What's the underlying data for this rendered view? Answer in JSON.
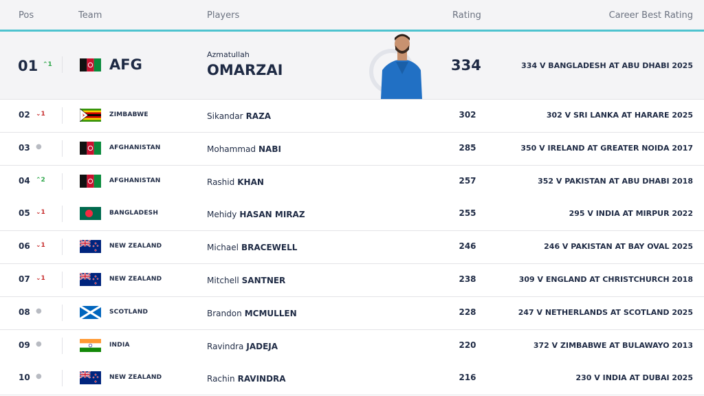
{
  "header": {
    "pos": "Pos",
    "team": "Team",
    "players": "Players",
    "rating": "Rating",
    "career": "Career Best Rating"
  },
  "top": {
    "pos": "01",
    "change": "1",
    "direction": "up",
    "team": "AFG",
    "flag": "afghanistan-flag",
    "first": "Azmatullah",
    "last": "OMARZAI",
    "rating": "334",
    "career": "334 V BANGLADESH AT ABU DHABI 2025"
  },
  "rows": [
    {
      "pos": "02",
      "change": "1",
      "direction": "down",
      "team": "ZIMBABWE",
      "flag": "zimbabwe-flag",
      "first": "Sikandar",
      "last": "RAZA",
      "rating": "302",
      "career": "302 V SRI LANKA AT HARARE 2025"
    },
    {
      "pos": "03",
      "change": "",
      "direction": "same",
      "team": "AFGHANISTAN",
      "flag": "afghanistan-flag",
      "first": "Mohammad",
      "last": "NABI",
      "rating": "285",
      "career": "350 V IRELAND AT GREATER NOIDA 2017"
    },
    {
      "pos": "04",
      "change": "2",
      "direction": "up",
      "team": "AFGHANISTAN",
      "flag": "afghanistan-flag",
      "first": "Rashid",
      "last": "KHAN",
      "rating": "257",
      "career": "352 V PAKISTAN AT ABU DHABI 2018"
    },
    {
      "pos": "05",
      "change": "1",
      "direction": "down",
      "team": "BANGLADESH",
      "flag": "bangladesh-flag",
      "first": "Mehidy",
      "last": "HASAN MIRAZ",
      "rating": "255",
      "career": "295 V INDIA AT MIRPUR 2022"
    },
    {
      "pos": "06",
      "change": "1",
      "direction": "down",
      "team": "NEW ZEALAND",
      "flag": "new-zealand-flag",
      "first": "Michael",
      "last": "BRACEWELL",
      "rating": "246",
      "career": "246 V PAKISTAN AT BAY OVAL 2025"
    },
    {
      "pos": "07",
      "change": "1",
      "direction": "down",
      "team": "NEW ZEALAND",
      "flag": "new-zealand-flag",
      "first": "Mitchell",
      "last": "SANTNER",
      "rating": "238",
      "career": "309 V ENGLAND AT CHRISTCHURCH 2018"
    },
    {
      "pos": "08",
      "change": "",
      "direction": "same",
      "team": "SCOTLAND",
      "flag": "scotland-flag",
      "first": "Brandon",
      "last": "MCMULLEN",
      "rating": "228",
      "career": "247 V NETHERLANDS AT SCOTLAND 2025"
    },
    {
      "pos": "09",
      "change": "",
      "direction": "same",
      "team": "INDIA",
      "flag": "india-flag",
      "first": "Ravindra",
      "last": "JADEJA",
      "rating": "220",
      "career": "372 V ZIMBABWE AT BULAWAYO 2013"
    },
    {
      "pos": "10",
      "change": "",
      "direction": "same",
      "team": "NEW ZEALAND",
      "flag": "new-zealand-flag",
      "first": "Rachin",
      "last": "RAVINDRA",
      "rating": "216",
      "career": "230 V INDIA AT DUBAI 2025"
    }
  ]
}
